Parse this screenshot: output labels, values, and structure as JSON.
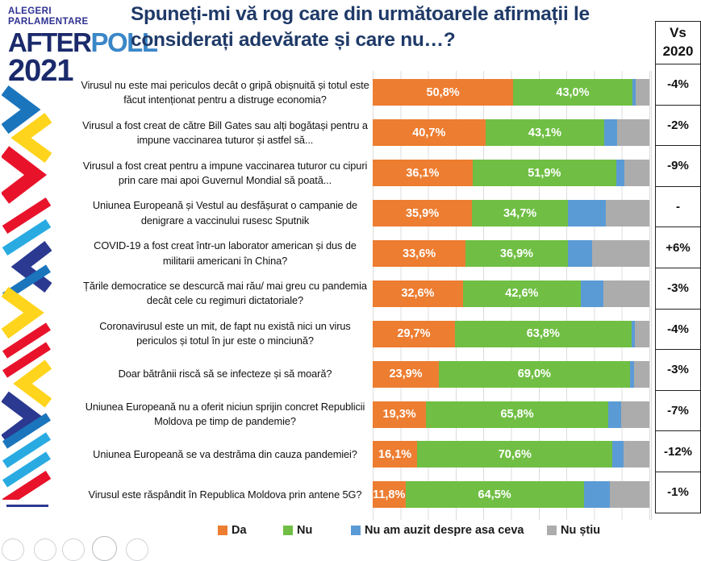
{
  "logo": {
    "line1": "ALEGERI",
    "line2": "PARLAMENTARE",
    "brand_dark": "AFTER",
    "brand_light": "POLL",
    "year": "2021"
  },
  "title": {
    "line1": "Spuneți-mi vă rog care din următoarele afirmații le",
    "line2": "considerați adevărate și care nu…?"
  },
  "vs_header": {
    "line1": "Vs",
    "line2": "2020"
  },
  "legend": [
    {
      "label": "Da",
      "color_key": "da"
    },
    {
      "label": "Nu",
      "color_key": "nu"
    },
    {
      "label": "Nu am auzit despre asa ceva",
      "color_key": "nu_am_auzit"
    },
    {
      "label": "Nu știu",
      "color_key": "nu_stiu"
    }
  ],
  "colors": {
    "da": "#ED7D31",
    "nu": "#70BF44",
    "nu_am_auzit": "#5B9BD5",
    "nu_stiu": "#ACACAC",
    "title_navy": "#1F3A68",
    "logo_indigo": "#2E3192",
    "logo_navy": "#1B2A6B",
    "logo_blue": "#3A87C8",
    "grid": "#DCDCDC",
    "table_border": "#222222"
  },
  "chart_data": {
    "type": "bar",
    "orientation": "horizontal",
    "stacked": true,
    "title": "Spuneți-mi vă rog care din următoarele afirmații le considerați adevărate și care nu…?",
    "series_names": [
      "Da",
      "Nu",
      "Nu am auzit despre asa ceva",
      "Nu știu"
    ],
    "xlim": [
      0,
      100
    ],
    "grid": "vertical, every 10%",
    "legend_position": "bottom",
    "value_label_format": "comma decimal + %",
    "note": "Only Da and Nu segments carry printed labels; Nu-am-auzit and Nu-știu values estimated from segment pixel widths.",
    "rows": [
      {
        "label": "Virusul nu este mai periculos decât o gripă obișnuită și totul este făcut intenționat pentru a distruge economia?",
        "da": 50.8,
        "nu": 43.0,
        "nu_am_auzit": 1.2,
        "nu_stiu": 5.0,
        "da_label": "50,8%",
        "nu_label": "43,0%",
        "vs_2020": "-4%"
      },
      {
        "label": "Virusul a fost creat de către Bill Gates sau alți bogătași pentru a impune vaccinarea tuturor și astfel să...",
        "da": 40.7,
        "nu": 43.1,
        "nu_am_auzit": 4.7,
        "nu_stiu": 11.5,
        "da_label": "40,7%",
        "nu_label": "43,1%",
        "vs_2020": "-2%"
      },
      {
        "label": "Virusul a fost creat pentru a impune vaccinarea tuturor cu cipuri prin care mai apoi Guvernul Mondial să poată...",
        "da": 36.1,
        "nu": 51.9,
        "nu_am_auzit": 2.9,
        "nu_stiu": 9.1,
        "da_label": "36,1%",
        "nu_label": "51,9%",
        "vs_2020": "-9%"
      },
      {
        "label": "Uniunea Europeană și Vestul au desfășurat o campanie de denigrare a vaccinului rusesc Sputnik",
        "da": 35.9,
        "nu": 34.7,
        "nu_am_auzit": 13.7,
        "nu_stiu": 15.7,
        "da_label": "35,9%",
        "nu_label": "34,7%",
        "vs_2020": "-"
      },
      {
        "label": "COVID-19 a fost creat într-un laborator american și dus de militarii americani în China?",
        "da": 33.6,
        "nu": 36.9,
        "nu_am_auzit": 8.8,
        "nu_stiu": 20.7,
        "da_label": "33,6%",
        "nu_label": "36,9%",
        "vs_2020": "+6%"
      },
      {
        "label": "Țările democratice se descurcă mai rău/ mai greu cu pandemia decât cele cu regimuri dictatoriale?",
        "da": 32.6,
        "nu": 42.6,
        "nu_am_auzit": 8.2,
        "nu_stiu": 16.6,
        "da_label": "32,6%",
        "nu_label": "42,6%",
        "vs_2020": "-3%"
      },
      {
        "label": "Coronavirusul este un mit, de fapt nu există nici un virus periculos și totul în jur este o minciună?",
        "da": 29.7,
        "nu": 63.8,
        "nu_am_auzit": 1.2,
        "nu_stiu": 5.3,
        "da_label": "29,7%",
        "nu_label": "63,8%",
        "vs_2020": "-4%"
      },
      {
        "label": "Doar bătrânii riscă să se infecteze și să moară?",
        "da": 23.9,
        "nu": 69.0,
        "nu_am_auzit": 1.5,
        "nu_stiu": 5.6,
        "da_label": "23,9%",
        "nu_label": "69,0%",
        "vs_2020": "-3%"
      },
      {
        "label": "Uniunea Europeană nu a oferit niciun sprijin concret Republicii Moldova pe timp de pandemie?",
        "da": 19.3,
        "nu": 65.8,
        "nu_am_auzit": 4.7,
        "nu_stiu": 10.2,
        "da_label": "19,3%",
        "nu_label": "65,8%",
        "vs_2020": "-7%"
      },
      {
        "label": "Uniunea Europeană se va destrăma din cauza pandemiei?",
        "da": 16.1,
        "nu": 70.6,
        "nu_am_auzit": 4.1,
        "nu_stiu": 9.2,
        "da_label": "16,1%",
        "nu_label": "70,6%",
        "vs_2020": "-12%"
      },
      {
        "label": "Virusul este răspândit în Republica Moldova prin antene 5G?",
        "da": 11.8,
        "nu": 64.5,
        "nu_am_auzit": 9.4,
        "nu_stiu": 14.3,
        "da_label": "11,8%",
        "nu_label": "64,5%",
        "vs_2020": "-1%"
      }
    ]
  }
}
